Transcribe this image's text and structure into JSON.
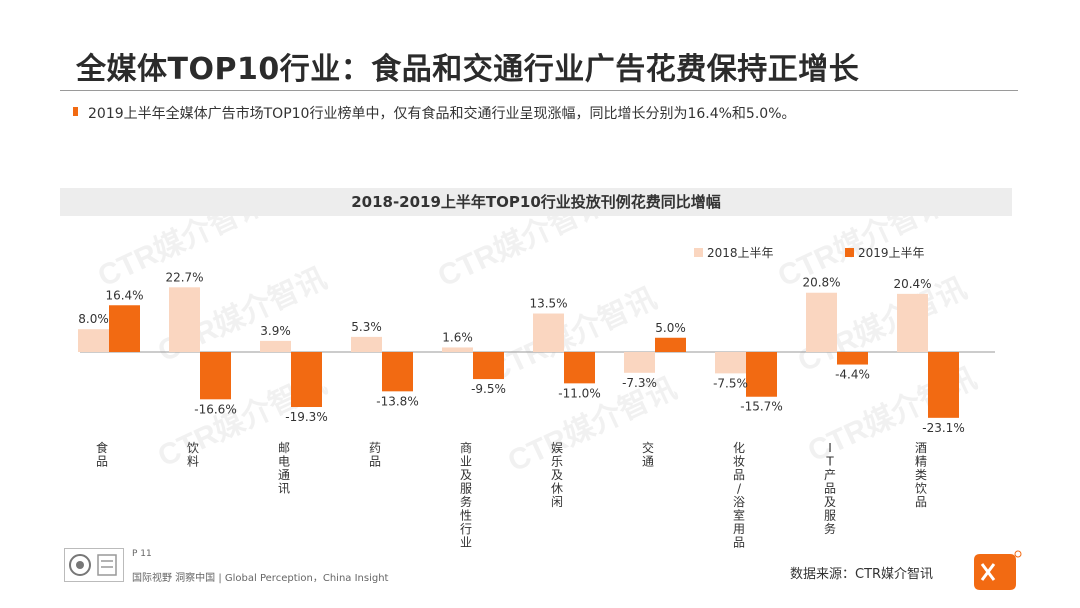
{
  "slide": {
    "title": "全媒体TOP10行业：食品和交通行业广告花费保持正增长",
    "subtitle": "2019上半年全媒体广告市场TOP10行业榜单中，仅有食品和交通行业呈现涨幅，同比增长分别为16.4%和5.0%。"
  },
  "footer": {
    "page": "P 11",
    "tagline": "国际视野 洞察中国 | Global Perception，China Insight",
    "source": "数据来源：CTR媒介智讯"
  },
  "watermark": "CTR媒介智讯",
  "colors": {
    "series_2018": "#fad6c0",
    "series_2019": "#f26a12",
    "accent": "#f26a12"
  },
  "chart_data": {
    "type": "bar",
    "title": "2018-2019上半年TOP10行业投放刊例花费同比增幅",
    "legend_position": "top-right",
    "categories": [
      "食品",
      "饮料",
      "邮电通讯",
      "药品",
      "商业及服务性行业",
      "娱乐及休闲",
      "交通",
      "化妆品/浴室用品",
      "IT产品及服务",
      "酒精类饮品"
    ],
    "series": [
      {
        "name": "2018上半年",
        "values": [
          8.0,
          22.7,
          3.9,
          5.3,
          1.6,
          13.5,
          -7.3,
          -7.5,
          20.8,
          20.4
        ],
        "labels": [
          "8.0%",
          "22.7%",
          "3.9%",
          "5.3%",
          "1.6%",
          "13.5%",
          "-7.3%",
          "-7.5%",
          "20.8%",
          "20.4%"
        ]
      },
      {
        "name": "2019上半年",
        "values": [
          16.4,
          -16.6,
          -19.3,
          -13.8,
          -9.5,
          -11.0,
          5.0,
          -15.7,
          -4.4,
          -23.1
        ],
        "labels": [
          "16.4%",
          "-16.6%",
          "-19.3%",
          "-13.8%",
          "-9.5%",
          "-11.0%",
          "5.0%",
          "-15.7%",
          "-4.4%",
          "-23.1%"
        ]
      }
    ],
    "unit": "%"
  }
}
